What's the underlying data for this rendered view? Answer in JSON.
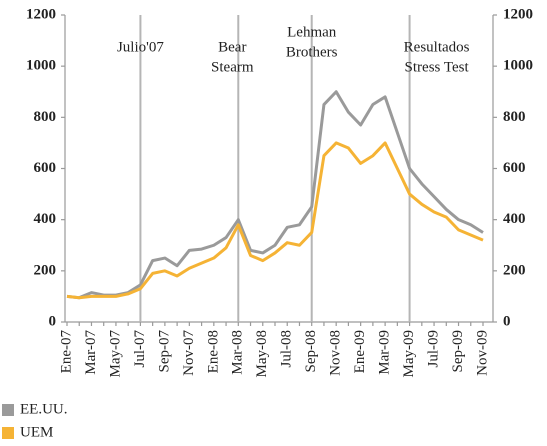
{
  "chart_data": {
    "type": "line",
    "categories": [
      "Ene-07",
      null,
      "Mar-07",
      null,
      "May-07",
      null,
      "Jul-07",
      null,
      "Sep-07",
      null,
      "Nov-07",
      null,
      "Ene-08",
      null,
      "Mar-08",
      null,
      "May-08",
      null,
      "Jul-08",
      null,
      "Sep-08",
      null,
      "Nov-08",
      null,
      "Ene-09",
      null,
      "Mar-09",
      null,
      "May-09",
      null,
      "Jul-09",
      null,
      "Sep-09",
      null,
      "Nov-09"
    ],
    "series": [
      {
        "name": "EE.UU.",
        "color": "#9a9a9a",
        "values": [
          100,
          95,
          115,
          105,
          105,
          115,
          145,
          240,
          250,
          220,
          280,
          285,
          300,
          330,
          400,
          280,
          270,
          300,
          370,
          380,
          450,
          850,
          900,
          820,
          770,
          850,
          880,
          740,
          600,
          540,
          490,
          440,
          400,
          380,
          350
        ]
      },
      {
        "name": "UEM",
        "color": "#f5b335",
        "values": [
          100,
          95,
          100,
          100,
          100,
          110,
          130,
          190,
          200,
          180,
          210,
          230,
          250,
          290,
          380,
          260,
          240,
          270,
          310,
          300,
          350,
          650,
          700,
          680,
          620,
          650,
          700,
          600,
          500,
          460,
          430,
          410,
          360,
          340,
          320
        ]
      }
    ],
    "ylim": [
      0,
      1200
    ],
    "yticks": [
      0,
      200,
      400,
      600,
      800,
      1000,
      1200
    ],
    "y2lim": [
      0,
      1200
    ],
    "y2ticks": [
      0,
      200,
      400,
      600,
      800,
      1000,
      1200
    ],
    "annotations": [
      {
        "text": [
          "Julio'07"
        ],
        "category": "Jul-07"
      },
      {
        "text": [
          "Bear",
          "Stearm"
        ],
        "category": "Mar-08"
      },
      {
        "text": [
          "Lehman",
          "Brothers"
        ],
        "category": "Sep-08"
      },
      {
        "text": [
          "Resultados",
          "Stress Test"
        ],
        "category": "May-09"
      }
    ]
  }
}
